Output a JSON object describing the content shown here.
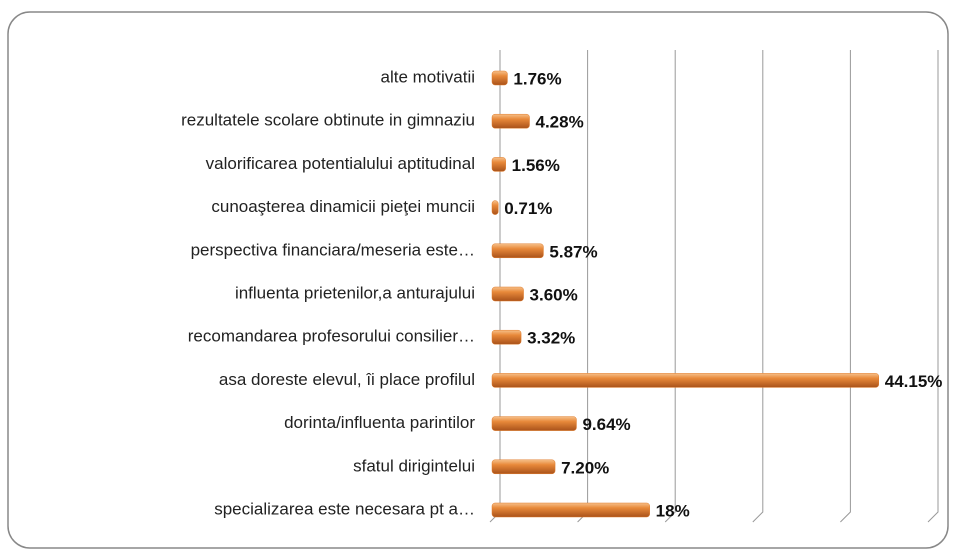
{
  "chart_data": {
    "type": "bar",
    "orientation": "horizontal",
    "categories": [
      "alte motivatii",
      "rezultatele scolare obtinute in gimnaziu",
      "valorificarea potentialului aptitudinal",
      "cunoaşterea dinamicii pieţei muncii",
      "perspectiva financiara/meseria este…",
      "influenta prietenilor,a anturajului",
      "recomandarea profesorului consilier…",
      "asa doreste elevul, îi place profilul",
      "dorinta/influenta parintilor",
      "sfatul dirigintelui",
      "specializarea este necesara pt a…"
    ],
    "values": [
      1.76,
      4.28,
      1.56,
      0.71,
      5.87,
      3.6,
      3.32,
      44.15,
      9.64,
      7.2,
      18
    ],
    "value_labels": [
      "1.76%",
      "4.28%",
      "1.56%",
      "0.71%",
      "5.87%",
      "3.60%",
      "3.32%",
      "44.15%",
      "9.64%",
      "7.20%",
      "18%"
    ],
    "color": "#e07b2a",
    "xlim": [
      0,
      50
    ],
    "xticks": [
      0,
      10,
      20,
      30,
      40,
      50
    ],
    "grid": true
  }
}
